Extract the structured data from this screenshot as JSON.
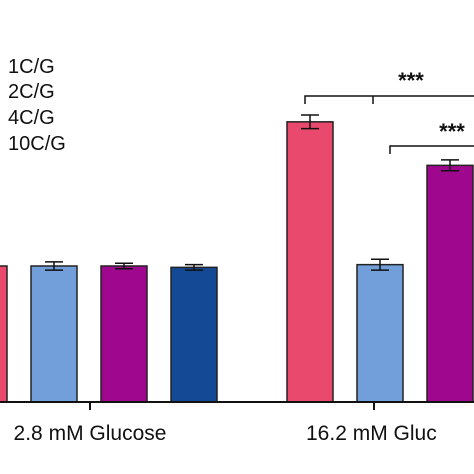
{
  "chart_data": {
    "type": "bar",
    "categories": [
      "2.8 mM Glucose",
      "16.2 mM Gluc"
    ],
    "series": [
      {
        "name": "1C/G",
        "color": "#e8496c",
        "values": [
          100,
          206
        ],
        "errors": [
          0,
          5
        ]
      },
      {
        "name": "2C/G",
        "color": "#729fda",
        "values": [
          100,
          101
        ],
        "errors": [
          3,
          4
        ]
      },
      {
        "name": "4C/G",
        "color": "#a0078f",
        "values": [
          100,
          174
        ],
        "errors": [
          2,
          4
        ]
      },
      {
        "name": "10C/G",
        "color": "#144995",
        "values": [
          99,
          null
        ],
        "errors": [
          2,
          0
        ]
      }
    ],
    "legend": {
      "placement": "top-left"
    },
    "annotations": [
      {
        "label": "***",
        "span": "1C/G, 2C/G, 4C/G at 16.2 mM"
      },
      {
        "label": "***",
        "span": "2C/G, 4C/G, 10C/G at 16.2 mM"
      }
    ],
    "grid": false,
    "title": "",
    "xlabel": "",
    "ylabel": ""
  }
}
